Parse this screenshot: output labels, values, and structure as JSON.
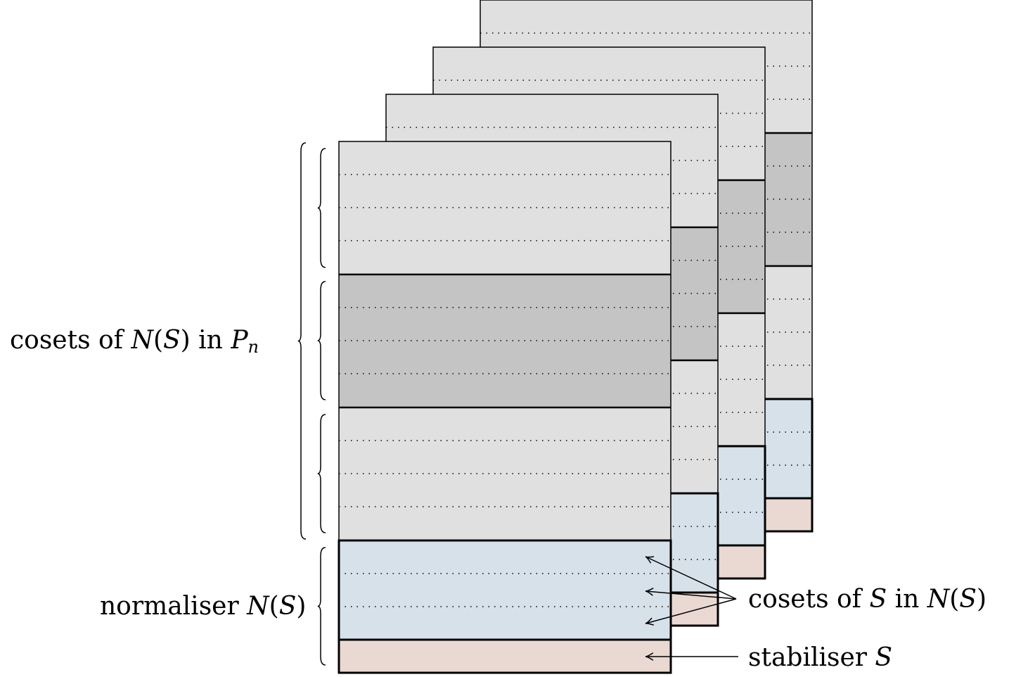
{
  "diagram": {
    "labels": {
      "cosets_in_pauli": {
        "prefix": "cosets of ",
        "group": "N",
        "open_paren": "(",
        "set": "S",
        "close_paren": ")",
        "mid": " in ",
        "pauli": "P",
        "pauli_sub": "n"
      },
      "normaliser": {
        "prefix": "normaliser ",
        "group": "N",
        "open_paren": "(",
        "set": "S",
        "close_paren": ")"
      },
      "cosets_in_normaliser": {
        "prefix": "cosets of ",
        "set": "S",
        "mid": " in ",
        "group": "N",
        "open_paren": "(",
        "set2": "S",
        "close_paren": ")"
      },
      "stabiliser": {
        "prefix": "stabiliser ",
        "set": "S"
      }
    },
    "colors": {
      "light_gray": "#e0e0e0",
      "dark_gray": "#c4c4c4",
      "light_blue": "#d7e1ea",
      "pink": "#ead8d2",
      "stroke": "#000000"
    }
  }
}
